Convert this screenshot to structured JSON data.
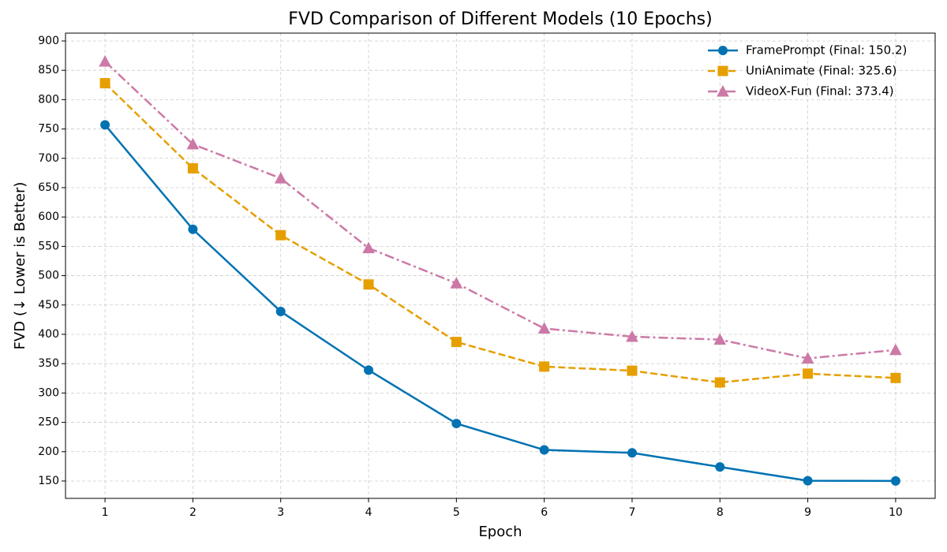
{
  "chart_data": {
    "type": "line",
    "title": "FVD Comparison of Different Models (10 Epochs)",
    "x_label": "Epoch",
    "y_label": "FVD (↓ Lower is Better)",
    "x": [
      1,
      2,
      3,
      4,
      5,
      6,
      7,
      8,
      9,
      10
    ],
    "series": [
      {
        "name": "FramePrompt (Final: 150.2)",
        "color": "#0072b2",
        "linestyle": "solid",
        "marker": "circle",
        "values": [
          757,
          579,
          439,
          339,
          248,
          203,
          198,
          174,
          150.5,
          150.2
        ]
      },
      {
        "name": "UniAnimate (Final: 325.6)",
        "color": "#e69f00",
        "linestyle": "dashed",
        "marker": "square",
        "values": [
          828,
          683,
          569,
          485,
          387,
          345,
          338,
          318,
          333,
          325.6
        ]
      },
      {
        "name": "VideoX-Fun (Final: 373.4)",
        "color": "#cc79a7",
        "linestyle": "dashdot",
        "marker": "triangle",
        "values": [
          865,
          724,
          666,
          547,
          487,
          410,
          396,
          391,
          359,
          373.4
        ]
      }
    ],
    "xlim": [
      0.55,
      10.45
    ],
    "xticks": [
      1,
      2,
      3,
      4,
      5,
      6,
      7,
      8,
      9,
      10
    ],
    "ylim": [
      120.4,
      913.4
    ],
    "yticks": [
      150,
      200,
      250,
      300,
      350,
      400,
      450,
      500,
      550,
      600,
      650,
      700,
      750,
      800,
      850,
      900
    ],
    "grid": true,
    "legend": "upper-right"
  }
}
